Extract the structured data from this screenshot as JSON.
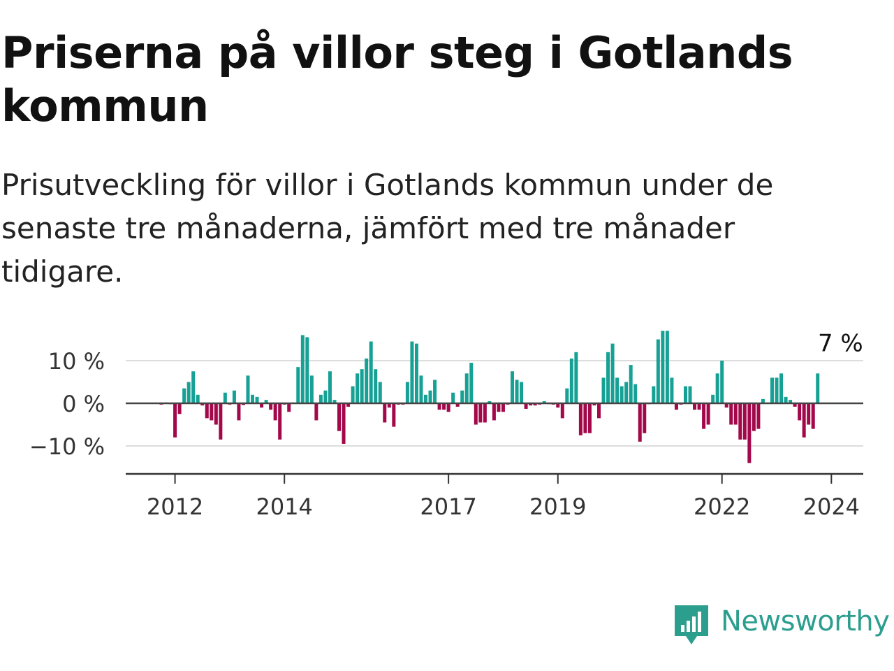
{
  "title": "Priserna på villor steg i Gotlands kommun",
  "subtitle": "Prisutveckling för villor i Gotlands kommun under de senaste tre månaderna, jämfört med tre månader tidigare.",
  "brand": {
    "name": "Newsworthy",
    "color": "#2b9e8e",
    "icon": "newsworthy-logo-icon"
  },
  "colors": {
    "positive": "#17a195",
    "negative": "#a3084a",
    "gridline": "#dddddd",
    "zero_line": "#444444",
    "axis": "#333333"
  },
  "chart_data": {
    "type": "bar",
    "title": "",
    "xlabel": "",
    "ylabel": "",
    "ylim": [
      -16,
      17
    ],
    "y_ticks": [
      {
        "value": 10,
        "label": "10 %"
      },
      {
        "value": 0,
        "label": "0 %"
      },
      {
        "value": -10,
        "label": "−10 %"
      }
    ],
    "x_ticks": [
      "2012",
      "2014",
      "2017",
      "2019",
      "2022",
      "2024"
    ],
    "x_tick_dates": [
      "2012-01",
      "2014-01",
      "2017-01",
      "2019-01",
      "2022-01",
      "2024-01"
    ],
    "start_month": "2011-10",
    "annotation": {
      "label": "7 %",
      "month": "2024-03",
      "value": 7
    },
    "grid": true,
    "legend": "none",
    "series": [
      {
        "values": [
          -0.3,
          0.2,
          -0.2,
          -8,
          -2.5,
          3.5,
          5,
          7.5,
          2,
          -0.5,
          -3.5,
          -4,
          -5,
          -8.5,
          2.5,
          -0.3,
          3,
          -4,
          -0.4,
          6.5,
          2,
          1.5,
          -1,
          0.8,
          -1.5,
          -4,
          -8.5,
          -0.3,
          -2,
          0.2,
          8.5,
          16,
          15.5,
          6.5,
          -4,
          2,
          3,
          7.5,
          0.8,
          -6.5,
          -9.5,
          -0.8,
          4,
          7,
          8,
          10.5,
          14.5,
          8,
          5,
          -4.5,
          -1,
          -5.5,
          -0.3,
          -0.3,
          5,
          14.5,
          14,
          6.5,
          2,
          3,
          5.5,
          -1.5,
          -1.5,
          -2,
          2.5,
          -0.8,
          3,
          7,
          9.5,
          -5,
          -4.5,
          -4.5,
          0.5,
          -4,
          -2,
          -2,
          -0.3,
          7.5,
          5.5,
          5,
          -1.3,
          -0.5,
          -0.5,
          -0.3,
          0.5,
          -0.2,
          -0.3,
          -1,
          -3.5,
          3.5,
          10.5,
          12,
          -7.5,
          -7,
          -7,
          -0.5,
          -3.5,
          6,
          12,
          14,
          6,
          4,
          5,
          9,
          4.5,
          -9,
          -7,
          -0.2,
          4,
          15,
          17,
          17,
          6,
          -1.5,
          -0.3,
          4,
          4,
          -1.5,
          -1.5,
          -6,
          -5,
          2,
          7,
          10,
          -1,
          -5,
          -5,
          -8.5,
          -8.5,
          -14,
          -6.5,
          -6,
          1,
          0.2,
          6,
          6,
          7,
          1.5,
          0.8,
          -0.8,
          -4,
          -8,
          -5,
          -6,
          7
        ]
      }
    ]
  }
}
